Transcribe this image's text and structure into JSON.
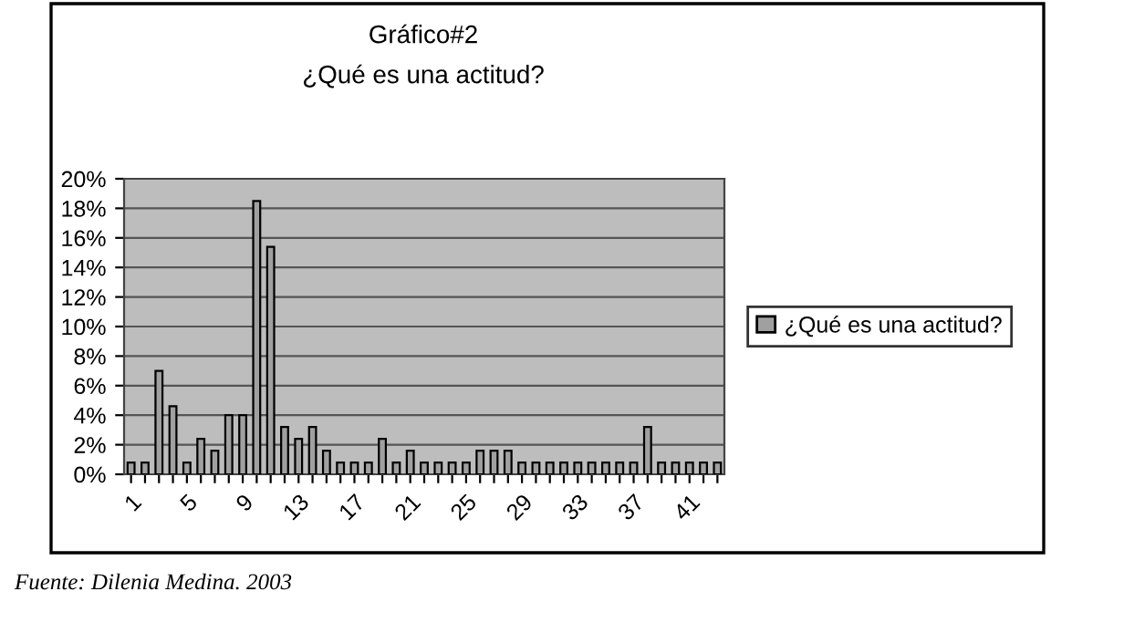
{
  "chart_data": {
    "type": "bar",
    "title": "Gráfico#2",
    "subtitle": "¿Qué es una actitud?",
    "categories": [
      "1",
      null,
      null,
      null,
      "5",
      null,
      null,
      null,
      "9",
      null,
      null,
      null,
      "13",
      null,
      null,
      null,
      "17",
      null,
      null,
      null,
      "21",
      null,
      null,
      null,
      "25",
      null,
      null,
      null,
      "29",
      null,
      null,
      null,
      "33",
      null,
      null,
      null,
      "37",
      null,
      null,
      null,
      "41",
      null,
      null
    ],
    "series": [
      {
        "name": "¿Qué es una actitud?",
        "color": "#a0a0a0",
        "values": [
          0.8,
          0.8,
          7.0,
          4.6,
          0.8,
          2.4,
          1.6,
          4.0,
          4.0,
          18.5,
          15.4,
          3.2,
          2.4,
          3.2,
          1.6,
          0.8,
          0.8,
          0.8,
          2.4,
          0.8,
          1.6,
          0.8,
          0.8,
          0.8,
          0.8,
          1.6,
          1.6,
          1.6,
          0.8,
          0.8,
          0.8,
          0.8,
          0.8,
          0.8,
          0.8,
          0.8,
          0.8,
          3.2,
          0.8,
          0.8,
          0.8,
          0.8,
          0.8
        ]
      }
    ],
    "ylim": [
      0,
      20
    ],
    "yticks": [
      {
        "value": 0,
        "label": "0%"
      },
      {
        "value": 2,
        "label": "2%"
      },
      {
        "value": 4,
        "label": "4%"
      },
      {
        "value": 6,
        "label": "6%"
      },
      {
        "value": 8,
        "label": "8%"
      },
      {
        "value": 10,
        "label": "10%"
      },
      {
        "value": 12,
        "label": "12%"
      },
      {
        "value": 14,
        "label": "14%"
      },
      {
        "value": 16,
        "label": "16%"
      },
      {
        "value": 18,
        "label": "18%"
      },
      {
        "value": 20,
        "label": "20%"
      }
    ],
    "grid": "y",
    "legend": "right",
    "annotations": [
      "Fuente: Dilenia Medina. 2003"
    ]
  }
}
